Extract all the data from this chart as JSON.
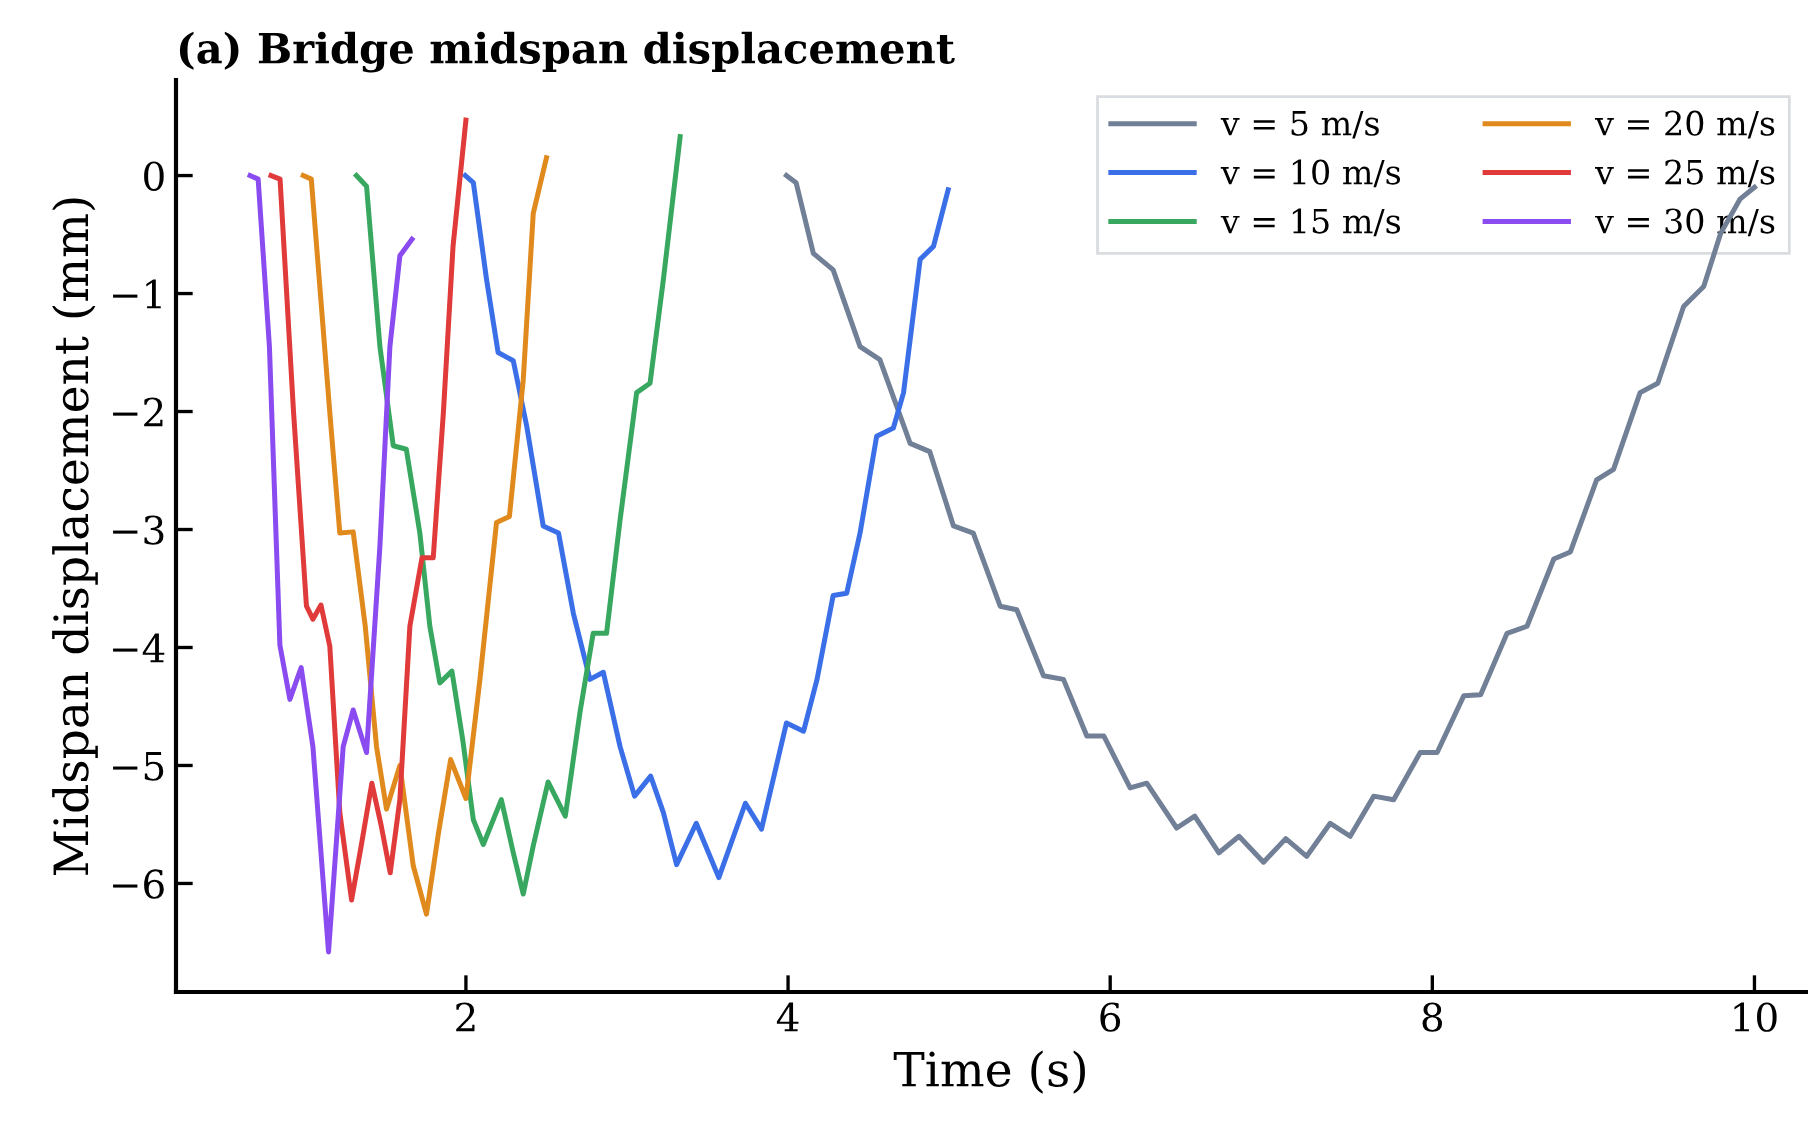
{
  "chart_data": {
    "type": "line",
    "title": "(a) Bridge midspan displacement",
    "xlabel": "Time (s)",
    "ylabel": "Midspan displacement (mm)",
    "xlim": [
      0.2,
      10.32
    ],
    "ylim": [
      -6.92,
      0.81
    ],
    "xticks": [
      2,
      4,
      6,
      8,
      10
    ],
    "yticks": [
      {
        "value": 0,
        "label": "0"
      },
      {
        "value": -1,
        "label": "−1"
      },
      {
        "value": -2,
        "label": "−2"
      },
      {
        "value": -3,
        "label": "−3"
      },
      {
        "value": -4,
        "label": "−4"
      },
      {
        "value": -5,
        "label": "−5"
      },
      {
        "value": -6,
        "label": "−6"
      }
    ],
    "grid": false,
    "legend": "top right",
    "marker": "none",
    "line_style": "solid",
    "series": [
      {
        "name": "v = 5 m/s",
        "color": "#718096",
        "x": [
          3.99,
          4.05,
          4.157,
          4.28,
          4.447,
          4.57,
          4.758,
          4.88,
          5.027,
          5.15,
          5.317,
          5.42,
          5.586,
          5.71,
          5.855,
          5.96,
          6.124,
          6.227,
          6.413,
          6.525,
          6.675,
          6.8,
          6.952,
          7.09,
          7.22,
          7.366,
          7.49,
          7.636,
          7.76,
          7.925,
          8.03,
          8.195,
          8.3,
          8.464,
          8.588,
          8.754,
          8.857,
          9.02,
          9.125,
          9.29,
          9.4,
          9.56,
          9.685,
          9.79,
          9.91,
          10.0
        ],
        "values": [
          0,
          -0.06,
          -0.66,
          -0.8,
          -1.45,
          -1.56,
          -2.27,
          -2.34,
          -2.97,
          -3.03,
          -3.65,
          -3.68,
          -4.24,
          -4.27,
          -4.75,
          -4.75,
          -5.19,
          -5.15,
          -5.53,
          -5.43,
          -5.74,
          -5.6,
          -5.82,
          -5.62,
          -5.77,
          -5.49,
          -5.6,
          -5.26,
          -5.29,
          -4.89,
          -4.89,
          -4.41,
          -4.4,
          -3.88,
          -3.82,
          -3.25,
          -3.19,
          -2.58,
          -2.49,
          -1.84,
          -1.76,
          -1.11,
          -0.94,
          -0.49,
          -0.2,
          -0.1
        ]
      },
      {
        "name": "v = 10 m/s",
        "color": "#3b6fe8",
        "x": [
          1.996,
          2.046,
          2.128,
          2.2,
          2.294,
          2.377,
          2.48,
          2.575,
          2.667,
          2.77,
          2.853,
          2.957,
          3.047,
          3.147,
          3.226,
          3.308,
          3.43,
          3.57,
          3.735,
          3.835,
          3.99,
          4.096,
          4.18,
          4.28,
          4.364,
          4.447,
          4.55,
          4.654,
          4.717,
          4.82,
          4.903,
          4.994
        ],
        "values": [
          0,
          -0.06,
          -0.88,
          -1.5,
          -1.57,
          -2.12,
          -2.97,
          -3.03,
          -3.71,
          -4.27,
          -4.21,
          -4.84,
          -5.26,
          -5.09,
          -5.4,
          -5.84,
          -5.49,
          -5.95,
          -5.32,
          -5.54,
          -4.64,
          -4.71,
          -4.27,
          -3.56,
          -3.54,
          -3.03,
          -2.21,
          -2.14,
          -1.84,
          -0.71,
          -0.6,
          -0.12
        ]
      },
      {
        "name": "v = 15 m/s",
        "color": "#38a860",
        "x": [
          1.32,
          1.383,
          1.466,
          1.549,
          1.63,
          1.714,
          1.776,
          1.838,
          1.913,
          1.98,
          2.046,
          2.108,
          2.22,
          2.294,
          2.356,
          2.418,
          2.51,
          2.617,
          2.708,
          2.79,
          2.873,
          2.957,
          3.06,
          3.143,
          3.226,
          3.33
        ],
        "values": [
          0,
          -0.09,
          -1.45,
          -2.29,
          -2.32,
          -3.03,
          -3.82,
          -4.3,
          -4.2,
          -4.78,
          -5.46,
          -5.67,
          -5.29,
          -5.74,
          -6.09,
          -5.68,
          -5.14,
          -5.43,
          -4.55,
          -3.88,
          -3.88,
          -2.92,
          -1.84,
          -1.76,
          -0.88,
          0.33
        ]
      },
      {
        "name": "v = 20 m/s",
        "color": "#e08a1e",
        "x": [
          0.99,
          1.04,
          1.155,
          1.217,
          1.3,
          1.375,
          1.445,
          1.507,
          1.59,
          1.673,
          1.755,
          1.83,
          1.905,
          2.0,
          2.087,
          2.19,
          2.27,
          2.356,
          2.418,
          2.5
        ],
        "values": [
          0,
          -0.03,
          -2.01,
          -3.03,
          -3.02,
          -3.82,
          -4.84,
          -5.37,
          -5.0,
          -5.85,
          -6.26,
          -5.57,
          -4.95,
          -5.28,
          -4.27,
          -2.94,
          -2.89,
          -1.73,
          -0.32,
          0.15
        ]
      },
      {
        "name": "v = 25 m/s",
        "color": "#e03a3a",
        "x": [
          0.79,
          0.846,
          0.93,
          1.01,
          1.05,
          1.1,
          1.155,
          1.217,
          1.29,
          1.35,
          1.416,
          1.474,
          1.53,
          1.59,
          1.652,
          1.727,
          1.797,
          1.86,
          1.92,
          2.0
        ],
        "values": [
          0,
          -0.03,
          -2.01,
          -3.65,
          -3.76,
          -3.64,
          -3.99,
          -5.4,
          -6.14,
          -5.68,
          -5.15,
          -5.51,
          -5.91,
          -5.29,
          -3.82,
          -3.24,
          -3.24,
          -2.01,
          -0.6,
          0.47
        ]
      },
      {
        "name": "v = 30 m/s",
        "color": "#8a4cf0",
        "x": [
          0.66,
          0.71,
          0.78,
          0.845,
          0.907,
          0.977,
          1.05,
          1.147,
          1.238,
          1.3,
          1.383,
          1.466,
          1.528,
          1.59,
          1.665
        ],
        "values": [
          0,
          -0.03,
          -1.45,
          -3.98,
          -4.44,
          -4.17,
          -4.84,
          -6.58,
          -4.84,
          -4.53,
          -4.89,
          -3.14,
          -1.45,
          -0.68,
          -0.54
        ]
      }
    ]
  }
}
